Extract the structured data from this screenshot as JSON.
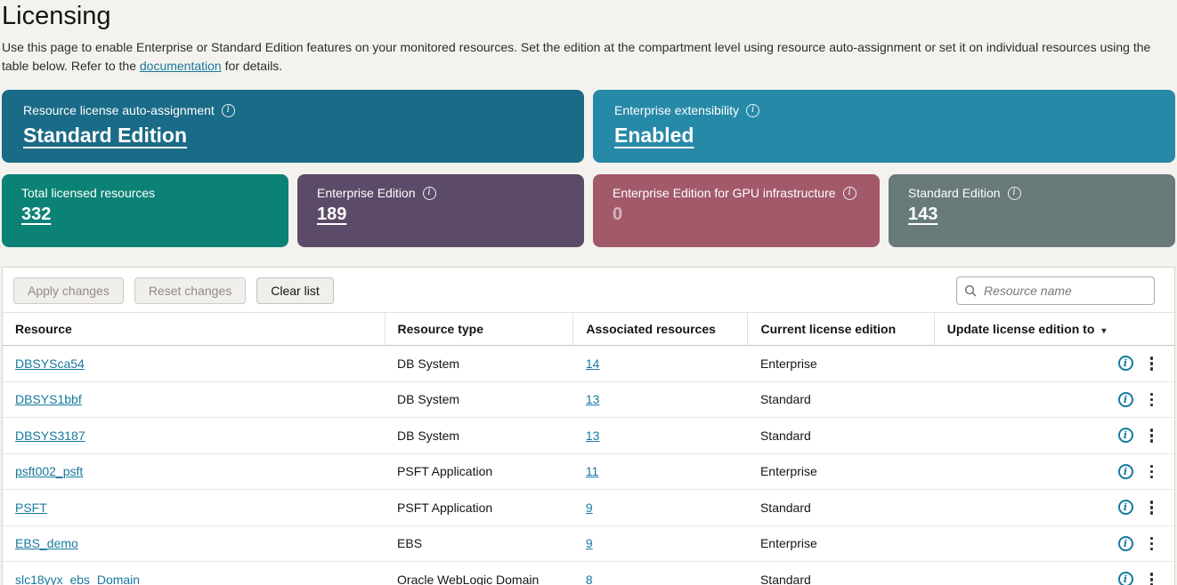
{
  "page": {
    "title": "Licensing",
    "description_before_link": "Use this page to enable Enterprise or Standard Edition features on your monitored resources. Set the edition at the compartment level using resource auto-assignment or set it on individual resources using the table below. Refer to the ",
    "description_link": "documentation",
    "description_after_link": " for details."
  },
  "banners": [
    {
      "label": "Resource license auto-assignment",
      "value": "Standard Edition",
      "color": "#1a6b87",
      "has_info": true
    },
    {
      "label": "Enterprise extensibility",
      "value": "Enabled",
      "color": "#2689a8",
      "has_info": true
    }
  ],
  "stats": [
    {
      "label": "Total licensed resources",
      "value": "332",
      "color": "#0c8276",
      "has_info": false,
      "muted": false
    },
    {
      "label": "Enterprise Edition",
      "value": "189",
      "color": "#5c4b68",
      "has_info": true,
      "muted": false
    },
    {
      "label": "Enterprise Edition for GPU infrastructure",
      "value": "0",
      "color": "#a25a6b",
      "has_info": true,
      "muted": true
    },
    {
      "label": "Standard Edition",
      "value": "143",
      "color": "#687a7a",
      "has_info": true,
      "muted": false
    }
  ],
  "toolbar": {
    "apply_label": "Apply changes",
    "reset_label": "Reset changes",
    "clear_label": "Clear list",
    "search_placeholder": "Resource name"
  },
  "table": {
    "columns": [
      "Resource",
      "Resource type",
      "Associated resources",
      "Current license edition",
      "Update license edition to"
    ],
    "rows": [
      {
        "resource": "DBSYSca54",
        "type": "DB System",
        "associated": "14",
        "edition": "Enterprise"
      },
      {
        "resource": "DBSYS1bbf",
        "type": "DB System",
        "associated": "13",
        "edition": "Standard"
      },
      {
        "resource": "DBSYS3187",
        "type": "DB System",
        "associated": "13",
        "edition": "Standard"
      },
      {
        "resource": "psft002_psft",
        "type": "PSFT Application",
        "associated": "11",
        "edition": "Enterprise"
      },
      {
        "resource": "PSFT",
        "type": "PSFT Application",
        "associated": "9",
        "edition": "Standard"
      },
      {
        "resource": "EBS_demo",
        "type": "EBS",
        "associated": "9",
        "edition": "Enterprise"
      },
      {
        "resource": "slc18yyx_ebs_Domain",
        "type": "Oracle WebLogic Domain",
        "associated": "8",
        "edition": "Standard"
      }
    ]
  },
  "icons": {
    "info": "i",
    "sort_down": "▾"
  },
  "colors": {
    "page_background": "#f4f2ee",
    "link": "#17799e",
    "info_icon": "#1579a0",
    "panel_background": "#ffffff",
    "text": "#161513"
  }
}
